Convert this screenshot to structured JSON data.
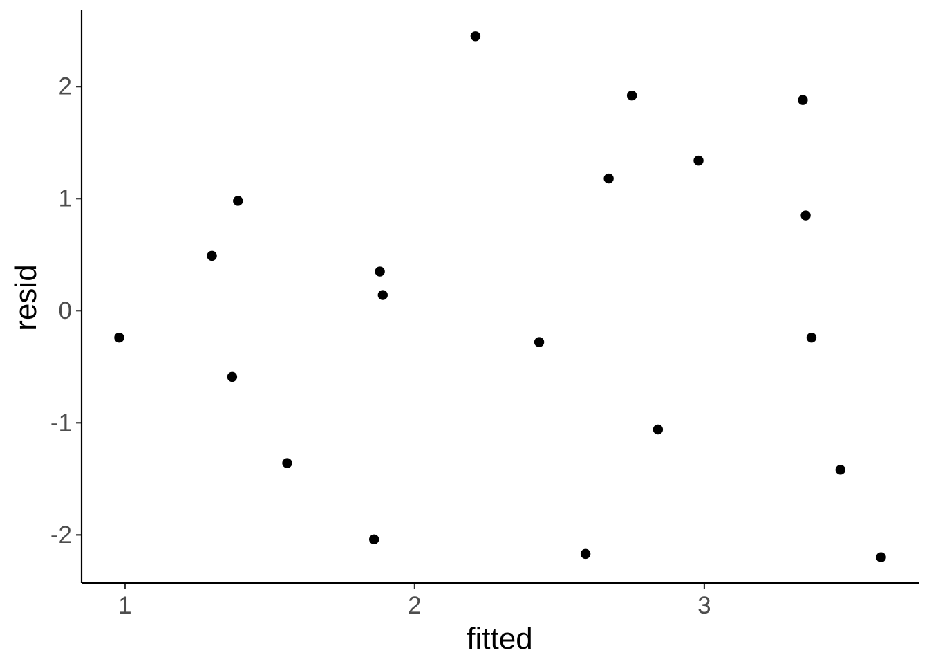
{
  "chart_data": {
    "type": "scatter",
    "title": "",
    "xlabel": "fitted",
    "ylabel": "resid",
    "xlim": [
      0.85,
      3.74
    ],
    "ylim": [
      -2.43,
      2.68
    ],
    "x_ticks": [
      1,
      2,
      3
    ],
    "x_tick_labels": [
      "1",
      "2",
      "3"
    ],
    "y_ticks": [
      -2,
      -1,
      0,
      1,
      2
    ],
    "y_tick_labels": [
      "-2",
      "-1",
      "0",
      "1",
      "2"
    ],
    "grid": false,
    "legend": "none",
    "point_color": "#000000",
    "points": [
      {
        "x": 0.98,
        "y": -0.24
      },
      {
        "x": 1.3,
        "y": 0.49
      },
      {
        "x": 1.37,
        "y": -0.59
      },
      {
        "x": 1.39,
        "y": 0.98
      },
      {
        "x": 1.56,
        "y": -1.36
      },
      {
        "x": 1.86,
        "y": -2.04
      },
      {
        "x": 1.88,
        "y": 0.35
      },
      {
        "x": 1.89,
        "y": 0.14
      },
      {
        "x": 2.21,
        "y": 2.45
      },
      {
        "x": 2.43,
        "y": -0.28
      },
      {
        "x": 2.59,
        "y": -2.17
      },
      {
        "x": 2.67,
        "y": 1.18
      },
      {
        "x": 2.75,
        "y": 1.92
      },
      {
        "x": 2.84,
        "y": -1.06
      },
      {
        "x": 2.98,
        "y": 1.34
      },
      {
        "x": 3.34,
        "y": 1.88
      },
      {
        "x": 3.35,
        "y": 0.85
      },
      {
        "x": 3.37,
        "y": -0.24
      },
      {
        "x": 3.47,
        "y": -1.42
      },
      {
        "x": 3.61,
        "y": -2.2
      }
    ]
  }
}
